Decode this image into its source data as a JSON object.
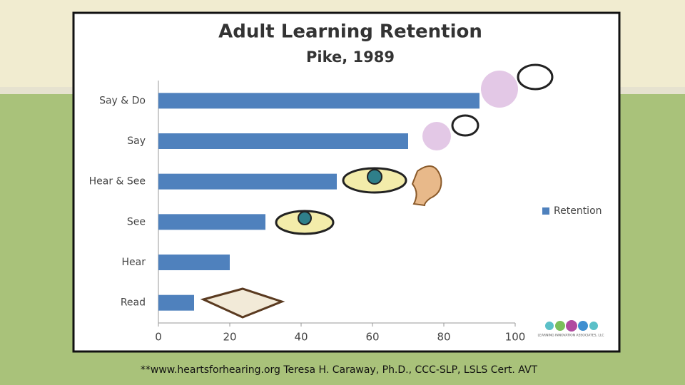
{
  "chart_data": {
    "type": "hbar",
    "title": "Adult Learning Retention",
    "subtitle": "Pike, 1989",
    "categories": [
      "Say & Do",
      "Say",
      "Hear & See",
      "See",
      "Hear",
      "Read"
    ],
    "series": [
      {
        "name": "Retention",
        "color": "#4f81bd",
        "values": [
          90,
          70,
          50,
          30,
          20,
          10
        ]
      }
    ],
    "xlim": [
      0,
      100
    ],
    "xticks": [
      0,
      20,
      40,
      60,
      80,
      100
    ],
    "grid": false,
    "legend": "right"
  },
  "logo_text": "LEARNING INNOVATION ASSOCIATES, LLC",
  "footer": "**www.heartsforhearing.org Teresa H. Caraway, Ph.D., CCC-SLP, LSLS Cert. AVT"
}
